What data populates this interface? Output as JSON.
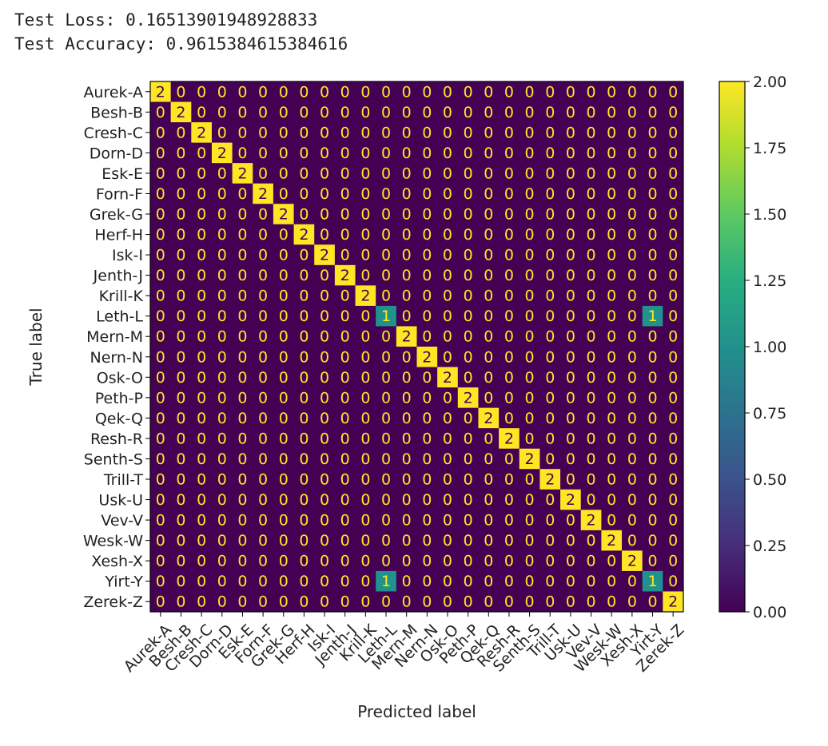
{
  "console": {
    "loss_line": "Test Loss: 0.16513901948928833",
    "accuracy_line": "Test Accuracy: 0.9615384615384616"
  },
  "chart_data": {
    "type": "heatmap",
    "xlabel": "Predicted label",
    "ylabel": "True label",
    "labels": [
      "Aurek-A",
      "Besh-B",
      "Cresh-C",
      "Dorn-D",
      "Esk-E",
      "Forn-F",
      "Grek-G",
      "Herf-H",
      "Isk-I",
      "Jenth-J",
      "Krill-K",
      "Leth-L",
      "Mern-M",
      "Nern-N",
      "Osk-O",
      "Peth-P",
      "Qek-Q",
      "Resh-R",
      "Senth-S",
      "Trill-T",
      "Usk-U",
      "Vev-V",
      "Wesk-W",
      "Xesh-X",
      "Yirt-Y",
      "Zerek-Z"
    ],
    "off_diagonal": [
      {
        "true": "Leth-L",
        "predicted": "Leth-L",
        "value": 1
      },
      {
        "true": "Leth-L",
        "predicted": "Yirt-Y",
        "value": 1
      },
      {
        "true": "Yirt-Y",
        "predicted": "Leth-L",
        "value": 1
      },
      {
        "true": "Yirt-Y",
        "predicted": "Yirt-Y",
        "value": 1
      }
    ],
    "diagonal_value": 2,
    "default_value": 0,
    "colorbar": {
      "colormap": "viridis",
      "min": 0.0,
      "max": 2.0,
      "ticks": [
        "0.00",
        "0.25",
        "0.50",
        "0.75",
        "1.00",
        "1.25",
        "1.50",
        "1.75",
        "2.00"
      ]
    },
    "colors": {
      "low": "#440154",
      "mid": "#21918c",
      "high": "#fde725"
    }
  }
}
